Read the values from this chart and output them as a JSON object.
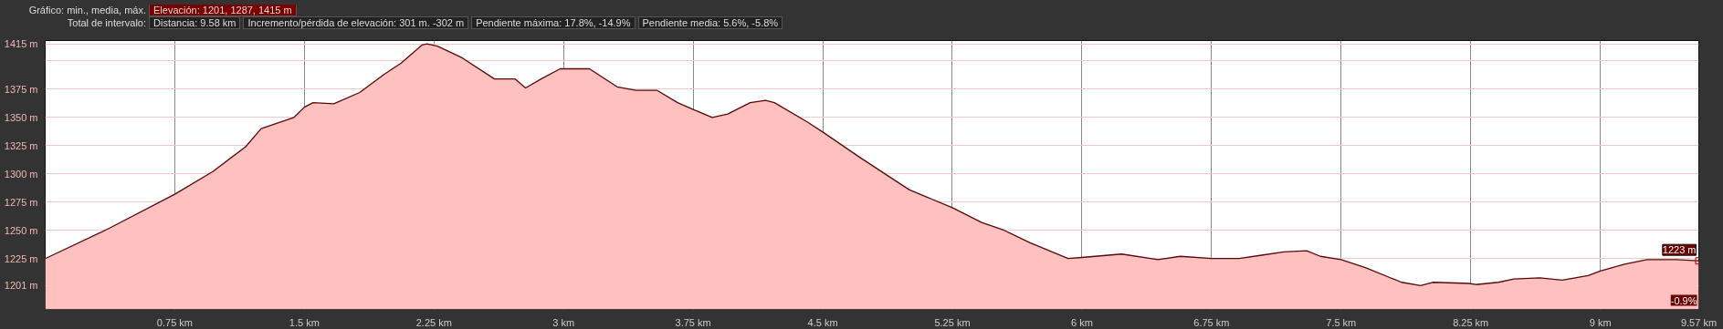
{
  "chart_data": {
    "type": "area",
    "title": "Gráfico: min., media, máx.",
    "subtitle": "Elevación: 1201, 1287, 1415 m",
    "annotations": [
      "Total de intervalo:",
      "Distancia: 9.58 km",
      "Incremento/pérdida de elevación: 301 m. -302 m",
      "Pendiente máxima: 17.8%, -14.9%",
      "Pendiente media: 5.6%, -5.8%",
      {
        "text": "1223 m",
        "x": 9.57,
        "y": 1223
      },
      "-0.9%"
    ],
    "series": [
      {
        "color": "#ffc0c0",
        "x": [
          0,
          0.36,
          0.75,
          0.97,
          1.16,
          1.25,
          1.44,
          1.5,
          1.55,
          1.67,
          1.82,
          1.96,
          2.06,
          2.18,
          2.21,
          2.27,
          2.41,
          2.6,
          2.72,
          2.78,
          2.87,
          2.98,
          3.15,
          3.31,
          3.42,
          3.54,
          3.66,
          3.75,
          3.86,
          3.95,
          4.08,
          4.17,
          4.22,
          4.41,
          4.5,
          4.72,
          5.0,
          5.25,
          5.42,
          5.55,
          5.7,
          5.92,
          6.0,
          6.23,
          6.44,
          6.57,
          6.75,
          6.91,
          7.04,
          7.17,
          7.3,
          7.38,
          7.5,
          7.64,
          7.85,
          7.96,
          8.03,
          8.24,
          8.28,
          8.41,
          8.5,
          8.65,
          8.78,
          8.93,
          9.0,
          9.14,
          9.27,
          9.44,
          9.57
        ],
        "values": [
          1225,
          1251,
          1282,
          1302,
          1324,
          1340,
          1350,
          1359,
          1363,
          1362,
          1372,
          1388,
          1398,
          1414,
          1415,
          1413,
          1403,
          1384,
          1384,
          1376,
          1384,
          1393,
          1393,
          1377,
          1374,
          1374,
          1363,
          1357,
          1350,
          1353,
          1363,
          1365,
          1363,
          1346,
          1337,
          1314,
          1286,
          1270,
          1257,
          1250,
          1239,
          1225,
          1226,
          1229,
          1224,
          1227,
          1225,
          1225,
          1228,
          1231,
          1232,
          1227,
          1224,
          1217,
          1204,
          1201,
          1204,
          1203,
          1202,
          1204,
          1207,
          1208,
          1206,
          1210,
          1214,
          1220,
          1224,
          1224,
          1223
        ]
      }
    ],
    "xlim": [
      0,
      9.57
    ],
    "ylim": [
      1180,
      1418
    ],
    "xticks": [
      {
        "value": 0.75,
        "label": "0.75 km"
      },
      {
        "value": 1.5,
        "label": "1.5 km"
      },
      {
        "value": 2.25,
        "label": "2.25 km"
      },
      {
        "value": 3,
        "label": "3 km"
      },
      {
        "value": 3.75,
        "label": "3.75 km"
      },
      {
        "value": 4.5,
        "label": "4.5 km"
      },
      {
        "value": 5.25,
        "label": "5.25 km"
      },
      {
        "value": 6,
        "label": "6 km"
      },
      {
        "value": 6.75,
        "label": "6.75 km"
      },
      {
        "value": 7.5,
        "label": "7.5 km"
      },
      {
        "value": 8.25,
        "label": "8.25 km"
      },
      {
        "value": 9,
        "label": "9 km"
      },
      {
        "value": 9.57,
        "label": "9.57 km"
      }
    ],
    "yticks": [
      {
        "value": 1201,
        "label": "1201 m"
      },
      {
        "value": 1225,
        "label": "1225 m"
      },
      {
        "value": 1250,
        "label": "1250 m"
      },
      {
        "value": 1275,
        "label": "1275 m"
      },
      {
        "value": 1300,
        "label": "1300 m"
      },
      {
        "value": 1325,
        "label": "1325 m"
      },
      {
        "value": 1350,
        "label": "1350 m"
      },
      {
        "value": 1375,
        "label": "1375 m"
      },
      {
        "value": 1400,
        "label": null
      },
      {
        "value": 1415,
        "label": "1415 m"
      }
    ],
    "grid": true
  }
}
